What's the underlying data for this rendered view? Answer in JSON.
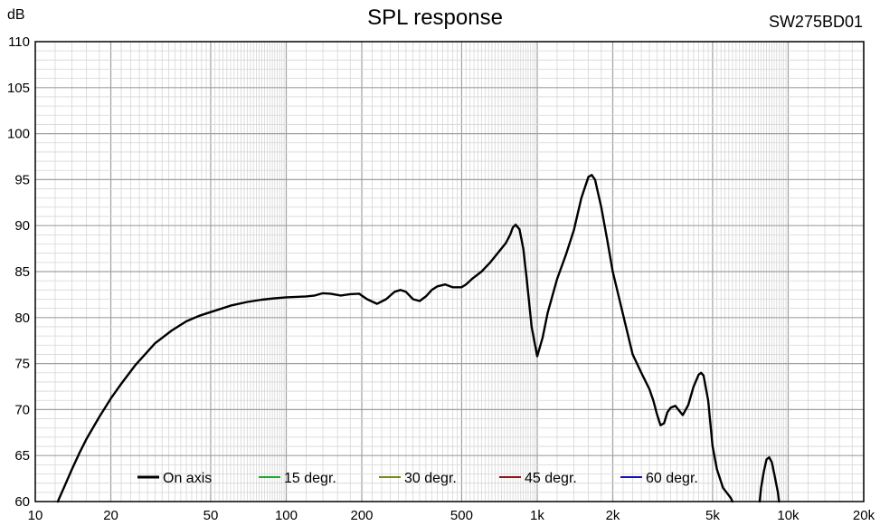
{
  "chart_data": {
    "type": "line",
    "title": "SPL response",
    "reference": "SW275BD01",
    "ylabel": "dB",
    "xscale": "log",
    "xlim": [
      10,
      20000
    ],
    "ylim": [
      60,
      110
    ],
    "grid": true,
    "legend_placement": "bottom-center",
    "x_ticks": [
      {
        "value": 10,
        "label": "10"
      },
      {
        "value": 20,
        "label": "20"
      },
      {
        "value": 50,
        "label": "50"
      },
      {
        "value": 100,
        "label": "100"
      },
      {
        "value": 200,
        "label": "200"
      },
      {
        "value": 500,
        "label": "500"
      },
      {
        "value": 1000,
        "label": "1k"
      },
      {
        "value": 2000,
        "label": "2k"
      },
      {
        "value": 5000,
        "label": "5k"
      },
      {
        "value": 10000,
        "label": "10k"
      },
      {
        "value": 20000,
        "label": "20k"
      }
    ],
    "y_ticks": [
      {
        "value": 60,
        "label": "60"
      },
      {
        "value": 65,
        "label": "65"
      },
      {
        "value": 70,
        "label": "70"
      },
      {
        "value": 75,
        "label": "75"
      },
      {
        "value": 80,
        "label": "80"
      },
      {
        "value": 85,
        "label": "85"
      },
      {
        "value": 90,
        "label": "90"
      },
      {
        "value": 95,
        "label": "95"
      },
      {
        "value": 100,
        "label": "100"
      },
      {
        "value": 105,
        "label": "105"
      },
      {
        "value": 110,
        "label": "110"
      }
    ],
    "series": [
      {
        "name": "On axis",
        "color": "#000000",
        "x": [
          12.3,
          13,
          14,
          15,
          16,
          18,
          20,
          22,
          25,
          28,
          30,
          35,
          40,
          45,
          50,
          60,
          70,
          80,
          90,
          100,
          110,
          120,
          130,
          140,
          150,
          165,
          180,
          195,
          210,
          230,
          250,
          270,
          285,
          300,
          320,
          340,
          360,
          380,
          400,
          430,
          460,
          500,
          520,
          550,
          600,
          650,
          700,
          750,
          780,
          800,
          820,
          850,
          880,
          910,
          950,
          1000,
          1050,
          1100,
          1200,
          1300,
          1400,
          1500,
          1600,
          1650,
          1700,
          1800,
          1900,
          2000,
          2200,
          2400,
          2600,
          2800,
          2900,
          3000,
          3100,
          3200,
          3300,
          3400,
          3550,
          3700,
          3800,
          4000,
          4200,
          4400,
          4500,
          4600,
          4800,
          5000,
          5200,
          5500,
          5900,
          6000
        ],
        "y": [
          60,
          61.5,
          63.5,
          65.3,
          66.8,
          69.2,
          71.2,
          72.8,
          74.8,
          76.3,
          77.2,
          78.6,
          79.6,
          80.2,
          80.6,
          81.3,
          81.7,
          81.95,
          82.1,
          82.2,
          82.25,
          82.3,
          82.4,
          82.65,
          82.6,
          82.4,
          82.55,
          82.6,
          82.0,
          81.5,
          82.0,
          82.8,
          83.0,
          82.8,
          82.0,
          81.8,
          82.3,
          83.0,
          83.4,
          83.6,
          83.3,
          83.3,
          83.6,
          84.2,
          85.0,
          86.0,
          87.1,
          88.1,
          89.0,
          89.8,
          90.1,
          89.6,
          87.5,
          84.0,
          79.0,
          75.8,
          77.8,
          80.5,
          84.2,
          86.8,
          89.5,
          93.0,
          95.3,
          95.5,
          95.0,
          92.0,
          88.5,
          85.0,
          80.3,
          76.0,
          74.0,
          72.2,
          71.0,
          69.5,
          68.3,
          68.5,
          69.7,
          70.2,
          70.4,
          69.8,
          69.4,
          70.5,
          72.5,
          73.8,
          74.0,
          73.7,
          71.0,
          66.0,
          63.5,
          61.5,
          60.4,
          60
        ]
      },
      {
        "name": "On axis",
        "color": "#000000",
        "x": [
          7700,
          7800,
          8000,
          8200,
          8400,
          8600,
          8800,
          9100,
          9200
        ],
        "y": [
          60,
          61.5,
          63.3,
          64.6,
          64.8,
          64.3,
          63.0,
          61.0,
          60
        ]
      }
    ],
    "legend": [
      {
        "label": "On axis",
        "color": "#000000"
      },
      {
        "label": "15 degr.",
        "color": "#1aab2a"
      },
      {
        "label": "30 degr.",
        "color": "#7a8a12"
      },
      {
        "label": "45 degr.",
        "color": "#9a1010"
      },
      {
        "label": "60 degr.",
        "color": "#1010c8"
      }
    ]
  }
}
